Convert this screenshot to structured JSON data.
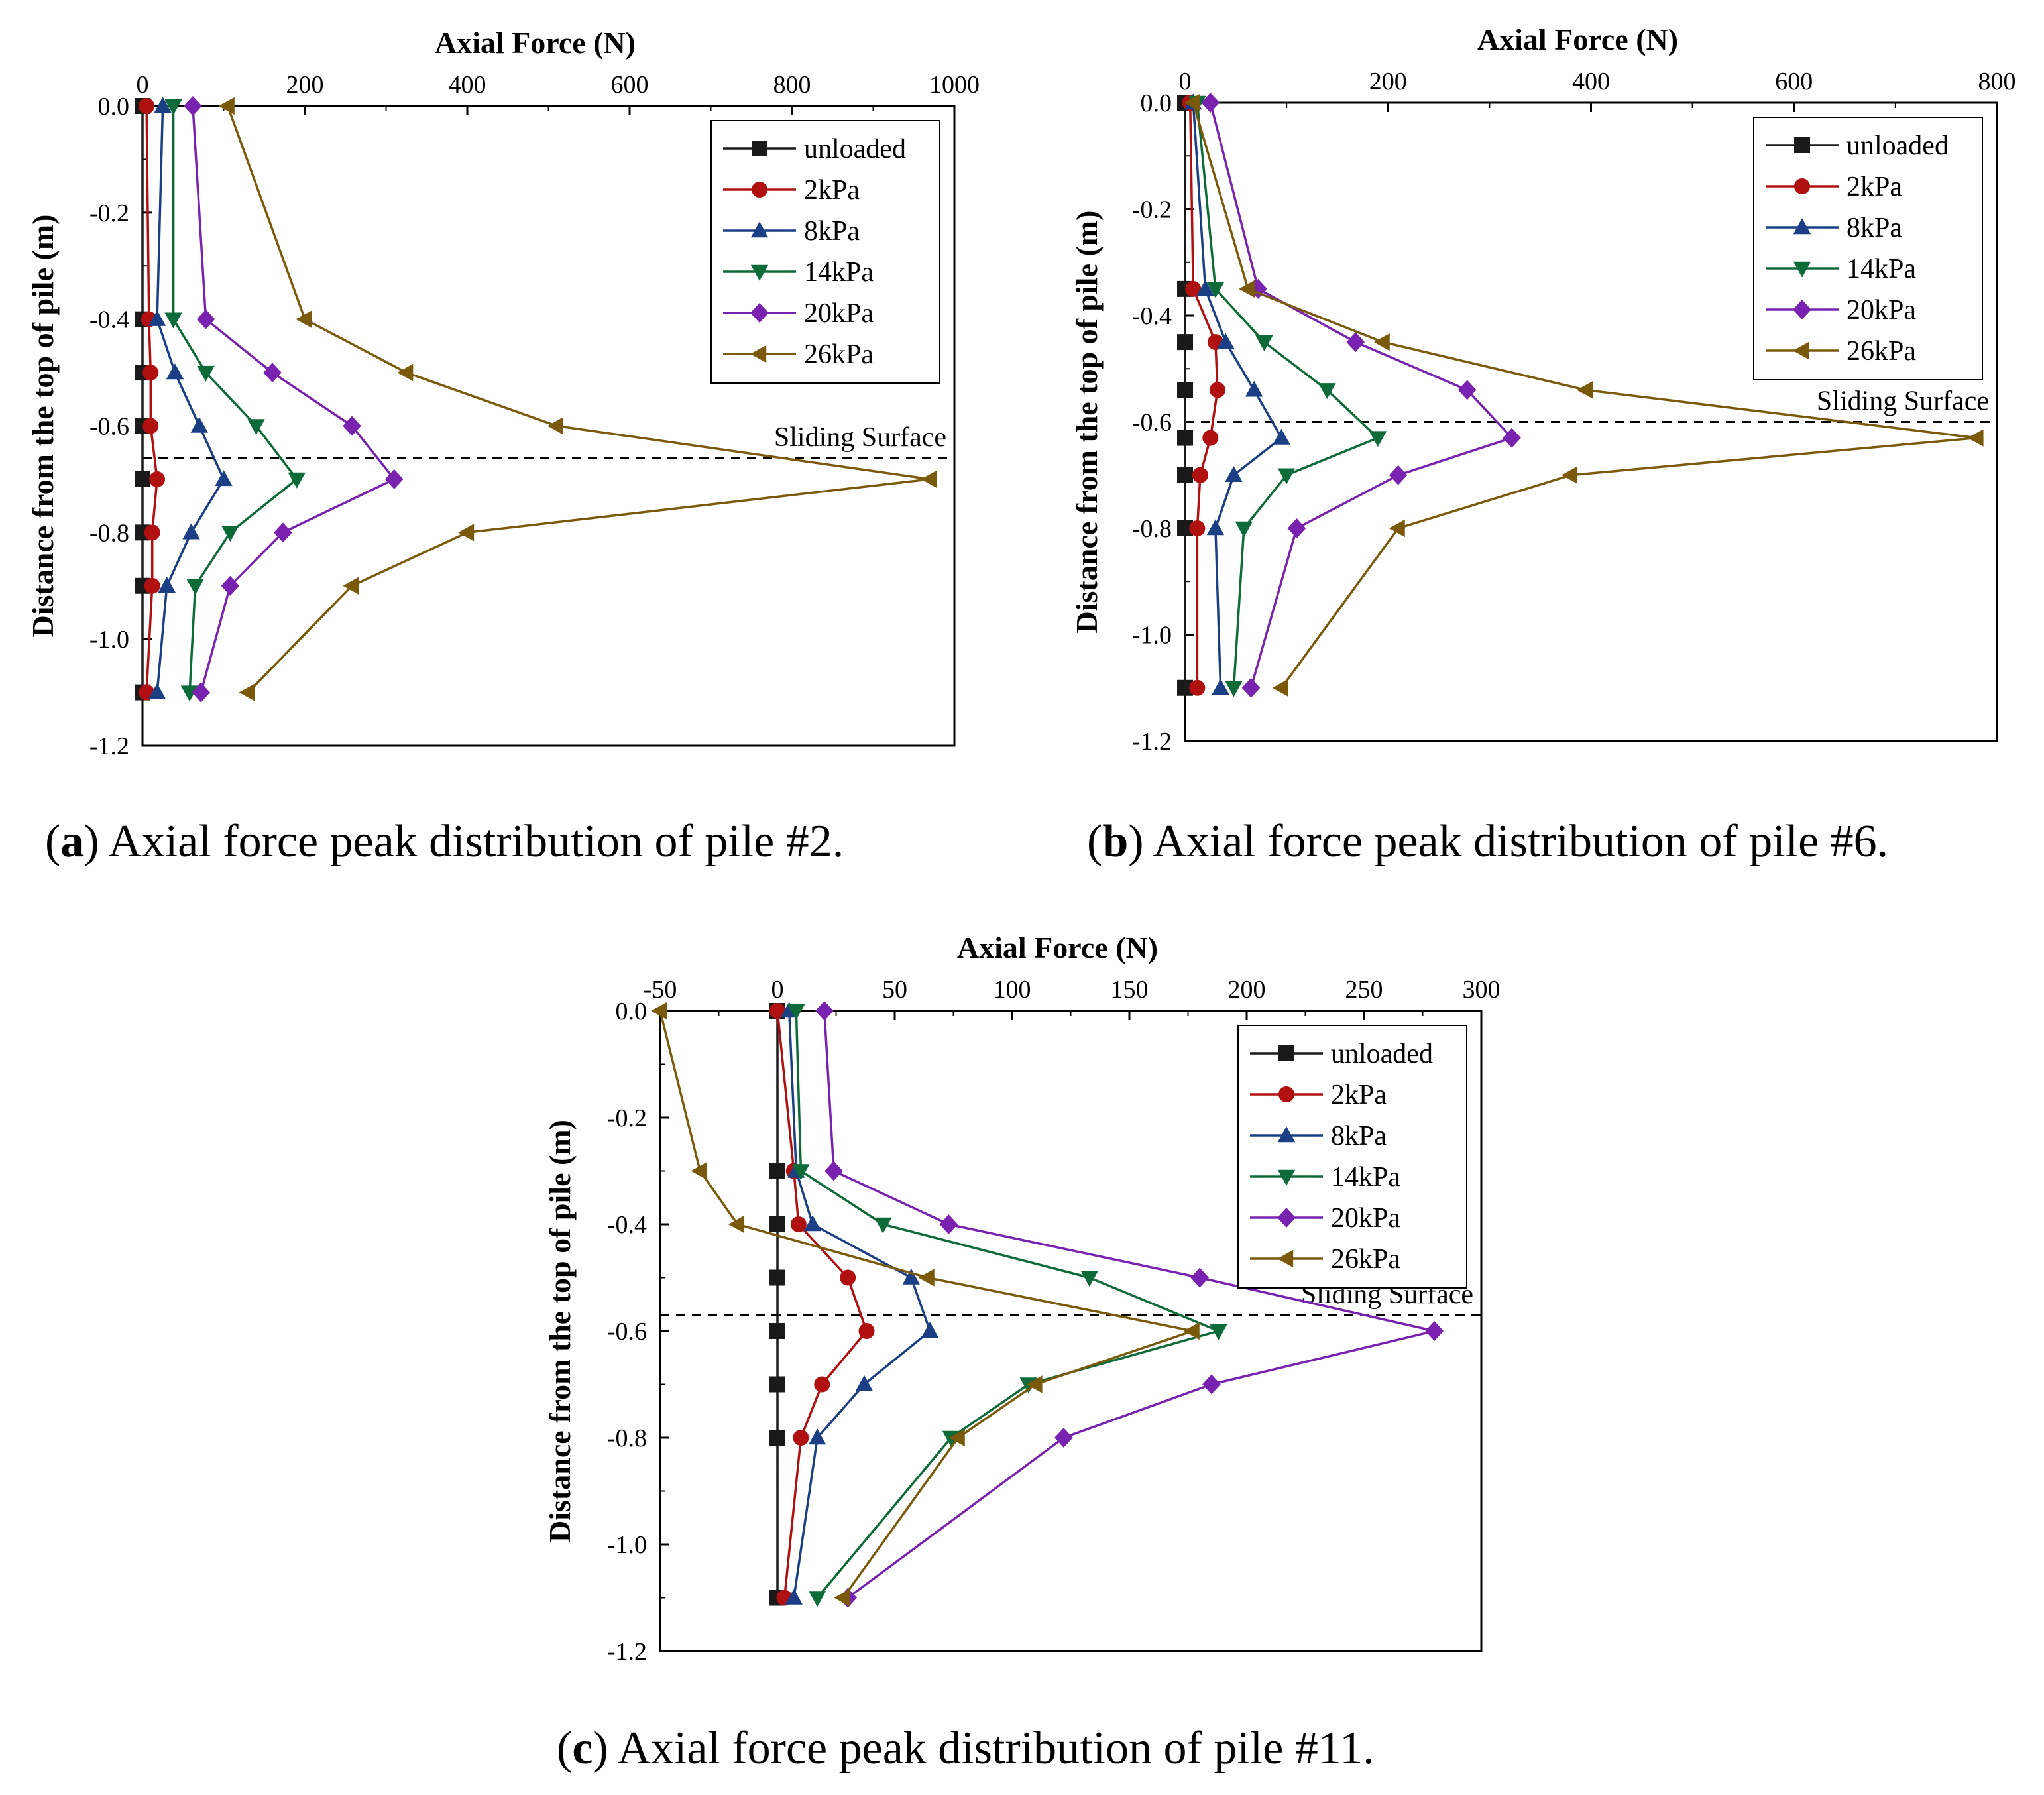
{
  "captions": [
    {
      "letter": "a",
      "open": "(",
      "close": ")",
      "text": " Axial force peak distribution of pile #2."
    },
    {
      "letter": "b",
      "open": "(",
      "close": ")",
      "text": " Axial force peak distribution of pile #6."
    },
    {
      "letter": "c",
      "open": "(",
      "close": ")",
      "text": " Axial force peak distribution of pile #11."
    }
  ],
  "colors": {
    "unloaded": "#1a1a1a",
    "2kPa": "#b01010",
    "8kPa": "#1a3f85",
    "14kPa": "#0d6b3a",
    "20kPa": "#7a22b0",
    "26kPa": "#7a5a0a"
  },
  "chart_data": [
    {
      "type": "line",
      "panel": "a",
      "title": "",
      "xlabel": "Axial Force  (N)",
      "ylabel": "Distance from the top of pile (m)",
      "xlim": [
        0,
        1000
      ],
      "ylim": [
        -1.2,
        0
      ],
      "xticks": [
        "0",
        "200",
        "400",
        "600",
        "800",
        "1000"
      ],
      "xtick_values": [
        0,
        200,
        400,
        600,
        800,
        1000
      ],
      "yticks": [
        "0.0",
        "-0.2",
        "-0.4",
        "-0.6",
        "-0.8",
        "-1.0",
        "-1.2"
      ],
      "ytick_values": [
        0,
        -0.2,
        -0.4,
        -0.6,
        -0.8,
        -1.0,
        -1.2
      ],
      "sliding_surface": {
        "label": "Sliding Surface",
        "y": -0.66
      },
      "legend_position": "top-right",
      "series": [
        {
          "name": "unloaded",
          "marker": "square",
          "x": [
            0,
            0,
            0,
            0,
            0,
            0,
            0,
            0
          ],
          "y": [
            0,
            -0.4,
            -0.5,
            -0.6,
            -0.7,
            -0.8,
            -0.9,
            -1.1
          ]
        },
        {
          "name": "2kPa",
          "marker": "circle",
          "x": [
            5,
            8,
            10,
            10,
            18,
            12,
            12,
            5
          ],
          "y": [
            0,
            -0.4,
            -0.5,
            -0.6,
            -0.7,
            -0.8,
            -0.9,
            -1.1
          ]
        },
        {
          "name": "8kPa",
          "marker": "triangle-up",
          "x": [
            25,
            18,
            40,
            70,
            100,
            60,
            30,
            18
          ],
          "y": [
            0,
            -0.4,
            -0.5,
            -0.6,
            -0.7,
            -0.8,
            -0.9,
            -1.1
          ]
        },
        {
          "name": "14kPa",
          "marker": "triangle-down",
          "x": [
            38,
            38,
            78,
            140,
            190,
            108,
            65,
            58
          ],
          "y": [
            0,
            -0.4,
            -0.5,
            -0.6,
            -0.7,
            -0.8,
            -0.9,
            -1.1
          ]
        },
        {
          "name": "20kPa",
          "marker": "diamond",
          "x": [
            62,
            78,
            160,
            258,
            310,
            173,
            108,
            72
          ],
          "y": [
            0,
            -0.4,
            -0.5,
            -0.6,
            -0.7,
            -0.8,
            -0.9,
            -1.1
          ]
        },
        {
          "name": "26kPa",
          "marker": "triangle-left",
          "x": [
            105,
            200,
            325,
            510,
            970,
            400,
            258,
            130
          ],
          "y": [
            0,
            -0.4,
            -0.5,
            -0.6,
            -0.7,
            -0.8,
            -0.9,
            -1.1
          ]
        }
      ]
    },
    {
      "type": "line",
      "panel": "b",
      "title": "",
      "xlabel": "Axial Force  (N)",
      "ylabel": "Distance from the top of pile (m)",
      "xlim": [
        0,
        800
      ],
      "ylim": [
        -1.2,
        0
      ],
      "xticks": [
        "0",
        "200",
        "400",
        "600",
        "800"
      ],
      "xtick_values": [
        0,
        200,
        400,
        600,
        800
      ],
      "yticks": [
        "0.0",
        "-0.2",
        "-0.4",
        "-0.6",
        "-0.8",
        "-1.0",
        "-1.2"
      ],
      "ytick_values": [
        0,
        -0.2,
        -0.4,
        -0.6,
        -0.8,
        -1.0,
        -1.2
      ],
      "sliding_surface": {
        "label": "Sliding Surface",
        "y": -0.6
      },
      "legend_position": "top-right",
      "series": [
        {
          "name": "unloaded",
          "marker": "square",
          "x": [
            0,
            0,
            0,
            0,
            0,
            0,
            0,
            0
          ],
          "y": [
            0,
            -0.35,
            -0.45,
            -0.54,
            -0.63,
            -0.7,
            -0.8,
            -1.1
          ]
        },
        {
          "name": "2kPa",
          "marker": "circle",
          "x": [
            5,
            8,
            30,
            32,
            25,
            15,
            12,
            12
          ],
          "y": [
            0,
            -0.35,
            -0.45,
            -0.54,
            -0.63,
            -0.7,
            -0.8,
            -1.1
          ]
        },
        {
          "name": "8kPa",
          "marker": "triangle-up",
          "x": [
            8,
            20,
            40,
            68,
            95,
            48,
            30,
            35
          ],
          "y": [
            0,
            -0.35,
            -0.45,
            -0.54,
            -0.63,
            -0.7,
            -0.8,
            -1.1
          ]
        },
        {
          "name": "14kPa",
          "marker": "triangle-down",
          "x": [
            12,
            30,
            78,
            140,
            190,
            100,
            58,
            48
          ],
          "y": [
            0,
            -0.35,
            -0.45,
            -0.54,
            -0.63,
            -0.7,
            -0.8,
            -1.1
          ]
        },
        {
          "name": "20kPa",
          "marker": "diamond",
          "x": [
            25,
            72,
            168,
            278,
            322,
            210,
            110,
            65
          ],
          "y": [
            0,
            -0.35,
            -0.45,
            -0.54,
            -0.63,
            -0.7,
            -0.8,
            -1.1
          ]
        },
        {
          "name": "26kPa",
          "marker": "triangle-left",
          "x": [
            8,
            62,
            195,
            395,
            780,
            380,
            210,
            95
          ],
          "y": [
            0,
            -0.35,
            -0.45,
            -0.54,
            -0.63,
            -0.7,
            -0.8,
            -1.1
          ]
        }
      ]
    },
    {
      "type": "line",
      "panel": "c",
      "title": "",
      "xlabel": "Axial Force (N)",
      "ylabel": "Distance from the top of pile (m)",
      "xlim": [
        -50,
        300
      ],
      "ylim": [
        -1.2,
        0
      ],
      "xticks": [
        "-50",
        "0",
        "50",
        "100",
        "150",
        "200",
        "250",
        "300"
      ],
      "xtick_values": [
        -50,
        0,
        50,
        100,
        150,
        200,
        250,
        300
      ],
      "yticks": [
        "0.0",
        "-0.2",
        "-0.4",
        "-0.6",
        "-0.8",
        "-1.0",
        "-1.2"
      ],
      "ytick_values": [
        0,
        -0.2,
        -0.4,
        -0.6,
        -0.8,
        -1.0,
        -1.2
      ],
      "sliding_surface": {
        "label": "Sliding Surface",
        "y": -0.57
      },
      "legend_position": "top-right",
      "series": [
        {
          "name": "unloaded",
          "marker": "square",
          "x": [
            0,
            0,
            0,
            0,
            0,
            0,
            0,
            0,
            0
          ],
          "y": [
            0,
            -0.3,
            -0.4,
            -0.5,
            -0.6,
            -0.7,
            -0.8,
            -1.1,
            -1.1
          ]
        },
        {
          "name": "2kPa",
          "marker": "circle",
          "x": [
            0,
            7,
            9,
            30,
            38,
            19,
            10,
            3
          ],
          "y": [
            0,
            -0.3,
            -0.4,
            -0.5,
            -0.6,
            -0.7,
            -0.8,
            -1.1
          ]
        },
        {
          "name": "8kPa",
          "marker": "triangle-up",
          "x": [
            5,
            8,
            15,
            57,
            65,
            37,
            17,
            7
          ],
          "y": [
            0,
            -0.3,
            -0.4,
            -0.5,
            -0.6,
            -0.7,
            -0.8,
            -1.1
          ]
        },
        {
          "name": "14kPa",
          "marker": "triangle-down",
          "x": [
            8,
            10,
            45,
            133,
            188,
            107,
            74,
            17
          ],
          "y": [
            0,
            -0.3,
            -0.4,
            -0.5,
            -0.6,
            -0.7,
            -0.8,
            -1.1
          ]
        },
        {
          "name": "20kPa",
          "marker": "diamond",
          "x": [
            20,
            24,
            73,
            180,
            280,
            185,
            122,
            30
          ],
          "y": [
            0,
            -0.3,
            -0.4,
            -0.5,
            -0.6,
            -0.7,
            -0.8,
            -1.1
          ]
        },
        {
          "name": "26kPa",
          "marker": "triangle-left",
          "x": [
            -50,
            -33,
            -17,
            64,
            177,
            110,
            77,
            28
          ],
          "y": [
            0,
            -0.3,
            -0.4,
            -0.5,
            -0.6,
            -0.7,
            -0.8,
            -1.1
          ]
        }
      ]
    }
  ]
}
